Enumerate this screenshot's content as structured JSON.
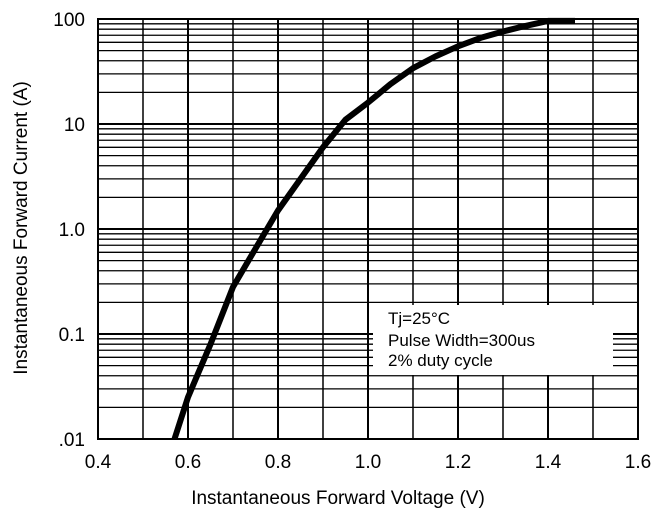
{
  "chart_data": {
    "type": "line",
    "title": "",
    "xlabel": "Instantaneous Forward Voltage (V)",
    "ylabel": "Instantaneous Forward Current (A)",
    "x_scale": "linear",
    "y_scale": "log",
    "xlim": [
      0.4,
      1.6
    ],
    "ylim": [
      0.01,
      100
    ],
    "x_ticks": [
      0.4,
      0.6,
      0.8,
      1.0,
      1.2,
      1.4,
      1.6
    ],
    "x_tick_labels": [
      "0.4",
      "0.6",
      "0.8",
      "1.0",
      "1.2",
      "1.4",
      "1.6"
    ],
    "y_ticks": [
      0.01,
      0.1,
      1,
      10,
      100
    ],
    "y_tick_labels": [
      ".01",
      "0.1",
      "1.0",
      "10",
      "100"
    ],
    "grid": true,
    "color": "#000000",
    "series": [
      {
        "x": [
          0.57,
          0.6,
          0.65,
          0.7,
          0.75,
          0.8,
          0.85,
          0.9,
          0.95,
          1.0,
          1.05,
          1.1,
          1.15,
          1.2,
          1.25,
          1.3,
          1.35,
          1.4,
          1.46
        ],
        "y": [
          0.01,
          0.025,
          0.08,
          0.28,
          0.65,
          1.5,
          3.0,
          6.0,
          11.0,
          16.0,
          24.0,
          34.0,
          44.0,
          55.0,
          66.0,
          76.0,
          86.0,
          96.0,
          96.0
        ]
      }
    ],
    "annotations": [
      "Tj=25°C",
      "Pulse Width=300us",
      "2% duty cycle"
    ]
  }
}
